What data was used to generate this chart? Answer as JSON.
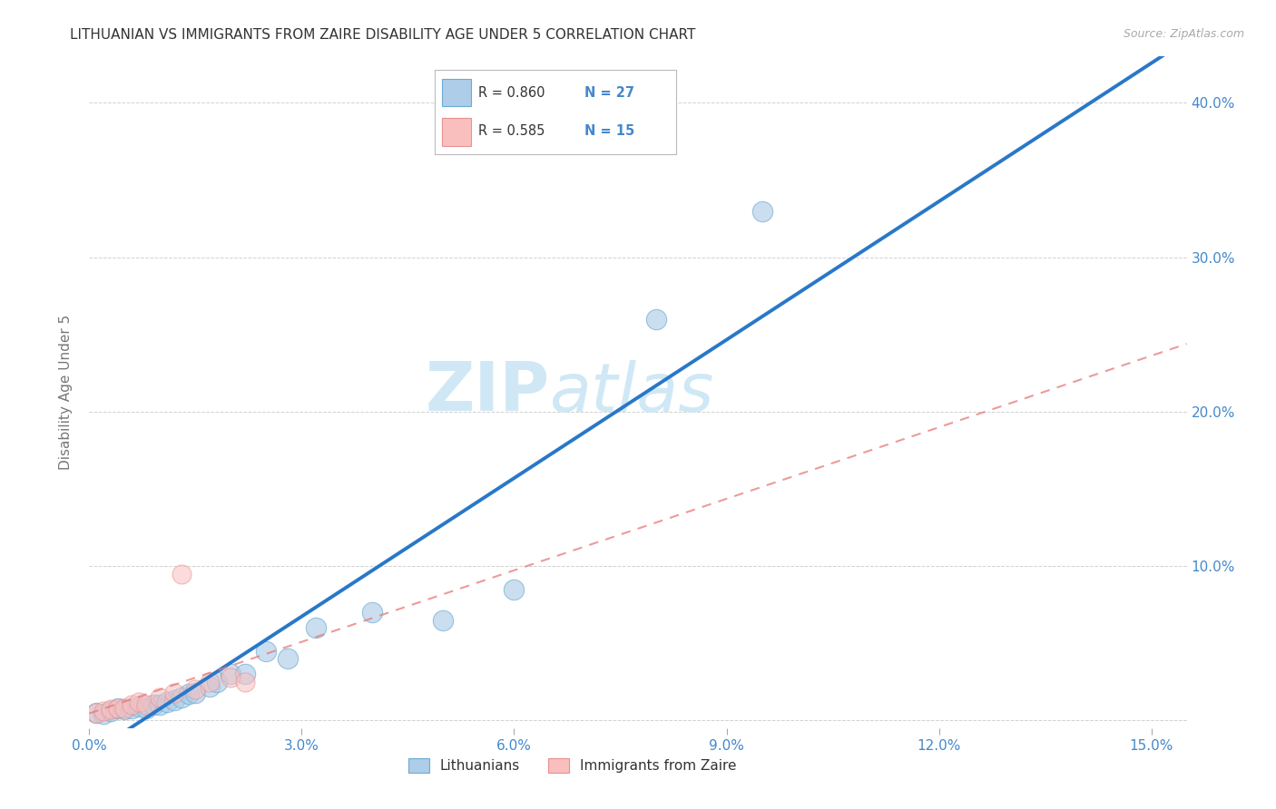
{
  "title": "LITHUANIAN VS IMMIGRANTS FROM ZAIRE DISABILITY AGE UNDER 5 CORRELATION CHART",
  "source": "Source: ZipAtlas.com",
  "ylabel": "Disability Age Under 5",
  "xlim": [
    0.0,
    0.155
  ],
  "ylim": [
    -0.005,
    0.43
  ],
  "xticks": [
    0.0,
    0.03,
    0.06,
    0.09,
    0.12,
    0.15
  ],
  "yticks": [
    0.0,
    0.1,
    0.2,
    0.3,
    0.4
  ],
  "xtick_labels": [
    "0.0%",
    "3.0%",
    "6.0%",
    "9.0%",
    "12.0%",
    "15.0%"
  ],
  "ytick_labels_right": [
    "",
    "10.0%",
    "20.0%",
    "30.0%",
    "40.0%"
  ],
  "blue_color": "#aecde8",
  "blue_edge_color": "#6aabd2",
  "pink_color": "#f9bfbf",
  "pink_edge_color": "#e89090",
  "blue_line_color": "#2878c8",
  "pink_line_color": "#e87878",
  "title_color": "#333333",
  "axis_label_color": "#4488cc",
  "background_color": "#ffffff",
  "watermark_color": "#d0e8f5",
  "blue_x": [
    0.001,
    0.002,
    0.003,
    0.004,
    0.005,
    0.006,
    0.007,
    0.008,
    0.009,
    0.01,
    0.011,
    0.012,
    0.013,
    0.014,
    0.015,
    0.017,
    0.018,
    0.02,
    0.022,
    0.025,
    0.028,
    0.032,
    0.04,
    0.05,
    0.06,
    0.08,
    0.095
  ],
  "blue_y": [
    0.005,
    0.004,
    0.006,
    0.008,
    0.007,
    0.008,
    0.009,
    0.008,
    0.01,
    0.01,
    0.012,
    0.013,
    0.015,
    0.017,
    0.018,
    0.022,
    0.025,
    0.03,
    0.03,
    0.045,
    0.04,
    0.06,
    0.07,
    0.065,
    0.085,
    0.26,
    0.33
  ],
  "pink_x": [
    0.001,
    0.002,
    0.003,
    0.004,
    0.005,
    0.006,
    0.007,
    0.008,
    0.01,
    0.012,
    0.013,
    0.015,
    0.017,
    0.02,
    0.022
  ],
  "pink_y": [
    0.005,
    0.006,
    0.007,
    0.008,
    0.008,
    0.01,
    0.012,
    0.01,
    0.015,
    0.018,
    0.095,
    0.02,
    0.025,
    0.028,
    0.025
  ],
  "legend_r1": "R = 0.860",
  "legend_n1": "N = 27",
  "legend_r2": "R = 0.585",
  "legend_n2": "N = 15",
  "legend_label1": "Lithuanians",
  "legend_label2": "Immigrants from Zaire"
}
